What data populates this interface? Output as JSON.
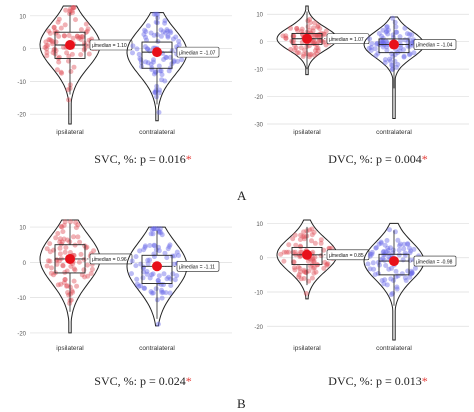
{
  "section_labels": [
    "A",
    "B"
  ],
  "colors": {
    "ipsilateral": "#e0525c",
    "contralateral": "#6a6ae8",
    "median_dot": "#e8101a",
    "significance_star": "#e53935"
  },
  "chart_data": [
    {
      "type": "violin",
      "panel": "A-left",
      "caption_prefix": "SVC, %: p = 0.016",
      "caption_star": "*",
      "categories": [
        "ipsilateral",
        "contralateral"
      ],
      "yticks": [
        10,
        0,
        -10,
        -20
      ],
      "ylim": [
        -23,
        13
      ],
      "grid": true,
      "series": [
        {
          "name": "ipsilateral",
          "median": 1.1,
          "q1": -3,
          "q3": 5,
          "whisker_low": -14,
          "whisker_high": 11,
          "min": -23,
          "max": 13,
          "median_label": "μ̂median = 1.10"
        },
        {
          "name": "contralateral",
          "median": -1.07,
          "q1": -6,
          "q3": 2,
          "whisker_low": -17,
          "whisker_high": 10,
          "min": -22,
          "max": 11,
          "median_label": "μ̂median = -1.07"
        }
      ]
    },
    {
      "type": "violin",
      "panel": "A-right",
      "caption_prefix": "DVC, %: p = 0.004",
      "caption_star": "*",
      "categories": [
        "ipsilateral",
        "contralateral"
      ],
      "yticks": [
        10,
        0,
        -10,
        -20,
        -30
      ],
      "ylim": [
        -30,
        13
      ],
      "grid": true,
      "series": [
        {
          "name": "ipsilateral",
          "median": 1.07,
          "q1": -1,
          "q3": 3,
          "whisker_low": -10,
          "whisker_high": 11,
          "min": -12,
          "max": 13,
          "median_label": "μ̂median = 1.07"
        },
        {
          "name": "contralateral",
          "median": -1.04,
          "q1": -4,
          "q3": 1,
          "whisker_low": -17,
          "whisker_high": 8,
          "min": -28,
          "max": 9,
          "median_label": "μ̂median = -1.04"
        }
      ]
    },
    {
      "type": "violin",
      "panel": "B-left",
      "caption_prefix": "SVC, %: p = 0.024",
      "caption_star": "*",
      "categories": [
        "ipsilateral",
        "contralateral"
      ],
      "yticks": [
        10,
        0,
        -10,
        -20
      ],
      "ylim": [
        -22,
        12
      ],
      "grid": true,
      "series": [
        {
          "name": "ipsilateral",
          "median": 0.96,
          "q1": -3,
          "q3": 5,
          "whisker_low": -14,
          "whisker_high": 11,
          "min": -20,
          "max": 12,
          "median_label": "μ̂median = 0.96"
        },
        {
          "name": "contralateral",
          "median": -1.11,
          "q1": -6,
          "q3": 2,
          "whisker_low": -16,
          "whisker_high": 9,
          "min": -18,
          "max": 10,
          "median_label": "μ̂median = -1.11"
        }
      ]
    },
    {
      "type": "violin",
      "panel": "B-right",
      "caption_prefix": "DVC, %: p = 0.013",
      "caption_star": "*",
      "categories": [
        "ipsilateral",
        "contralateral"
      ],
      "yticks": [
        10,
        0,
        -10,
        -20
      ],
      "ylim": [
        -24,
        11
      ],
      "grid": true,
      "series": [
        {
          "name": "ipsilateral",
          "median": 0.85,
          "q1": -2,
          "q3": 3,
          "whisker_low": -8,
          "whisker_high": 9,
          "min": -12,
          "max": 11,
          "median_label": "μ̂median = 0.85"
        },
        {
          "name": "contralateral",
          "median": -0.98,
          "q1": -5,
          "q3": 1,
          "whisker_low": -14,
          "whisker_high": 8,
          "min": -24,
          "max": 10,
          "median_label": "μ̂median = -0.98"
        }
      ]
    }
  ]
}
